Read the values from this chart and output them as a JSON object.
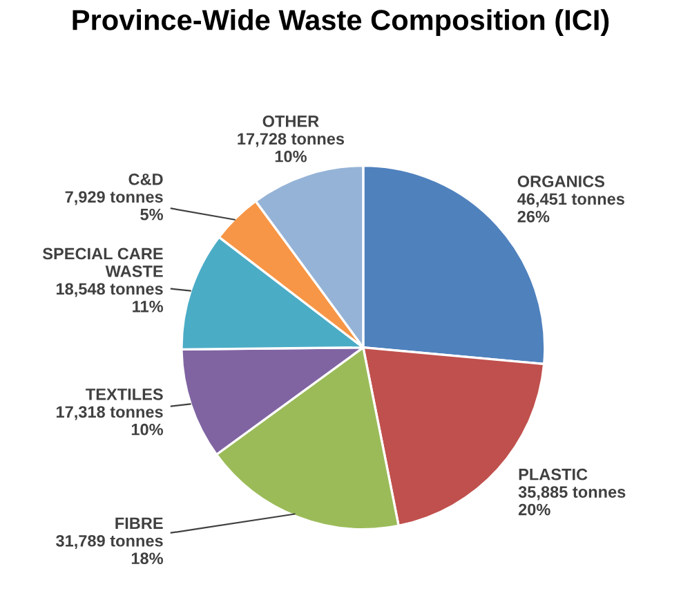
{
  "chart_data": {
    "type": "pie",
    "title": "Province-Wide Waste Composition (ICI)",
    "categories": [
      "ORGANICS",
      "PLASTIC",
      "FIBRE",
      "TEXTILES",
      "SPECIAL CARE\nWASTE",
      "C&D",
      "OTHER"
    ],
    "values": [
      46451,
      35885,
      31789,
      17318,
      18548,
      7929,
      17728
    ],
    "value_labels": [
      "46,451 tonnes\n26%",
      "35,885 tonnes\n20%",
      "31,789 tonnes\n18%",
      "17,318 tonnes\n10%",
      "18,548 tonnes\n11%",
      "7,929 tonnes\n5%",
      "17,728 tonnes\n10%"
    ],
    "colors": [
      "#4f81bd",
      "#c0504d",
      "#9bbb59",
      "#8064a2",
      "#4bacc6",
      "#f79646",
      "#95b3d7"
    ]
  }
}
